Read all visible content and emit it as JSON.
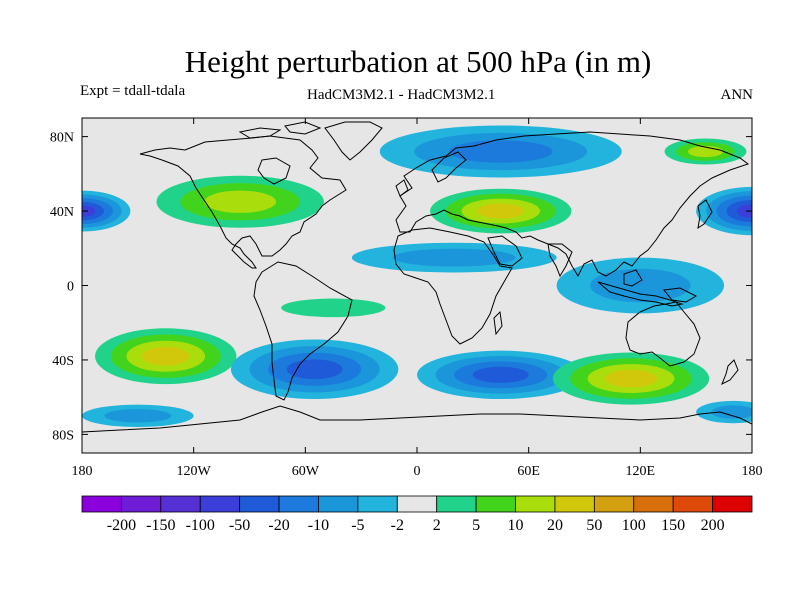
{
  "title": "Height perturbation at 500 hPa (in m)",
  "experiment_label": "Expt = tdall-tdala",
  "model_label": "HadCM3M2.1 - HadCM3M2.1",
  "season_label": "ANN",
  "map": {
    "projection": "cylindrical-equidistant",
    "lon_range": [
      -180,
      180
    ],
    "lat_range": [
      -90,
      90
    ],
    "background_color": "#e6e6e6",
    "coastline_color": "#000000",
    "lat_ticks": [
      {
        "value": 80,
        "label": "80N"
      },
      {
        "value": 40,
        "label": "40N"
      },
      {
        "value": 0,
        "label": "0"
      },
      {
        "value": -40,
        "label": "40S"
      },
      {
        "value": -80,
        "label": "80S"
      }
    ],
    "lon_ticks": [
      {
        "value": -180,
        "label": "180"
      },
      {
        "value": -120,
        "label": "120W"
      },
      {
        "value": -60,
        "label": "60W"
      },
      {
        "value": 0,
        "label": "0"
      },
      {
        "value": 60,
        "label": "60E"
      },
      {
        "value": 120,
        "label": "120E"
      },
      {
        "value": 180,
        "label": "180"
      }
    ],
    "anomalies": [
      {
        "name": "north-pacific-west-low",
        "lon": -180,
        "lat": 40,
        "rlon": 26,
        "rlat": 11,
        "level": -50
      },
      {
        "name": "north-pacific-east-low",
        "lon": 180,
        "lat": 40,
        "rlon": 30,
        "rlat": 13,
        "level": -50
      },
      {
        "name": "north-america-high",
        "lon": -95,
        "lat": 45,
        "rlon": 45,
        "rlat": 14,
        "level": 10
      },
      {
        "name": "eurasia-high",
        "lon": 45,
        "lat": 40,
        "rlon": 38,
        "rlat": 12,
        "level": 20
      },
      {
        "name": "arctic-low",
        "lon": 45,
        "lat": 72,
        "rlon": 65,
        "rlat": 14,
        "level": -10
      },
      {
        "name": "siberia-high",
        "lon": 155,
        "lat": 72,
        "rlon": 22,
        "rlat": 7,
        "level": 10
      },
      {
        "name": "subtropic-low-atlantic",
        "lon": 20,
        "lat": 15,
        "rlon": 55,
        "rlat": 8,
        "level": -5
      },
      {
        "name": "pacific-tropical-low",
        "lon": 120,
        "lat": 0,
        "rlon": 45,
        "rlat": 15,
        "level": -5
      },
      {
        "name": "south-pacific-high",
        "lon": -135,
        "lat": -38,
        "rlon": 38,
        "rlat": 15,
        "level": 20
      },
      {
        "name": "south-america-low",
        "lon": -55,
        "lat": -45,
        "rlon": 45,
        "rlat": 16,
        "level": -20
      },
      {
        "name": "south-atlantic-tropical-high",
        "lon": -45,
        "lat": -12,
        "rlon": 28,
        "rlat": 5,
        "level": 2
      },
      {
        "name": "south-indian-low",
        "lon": 45,
        "lat": -48,
        "rlon": 45,
        "rlat": 13,
        "level": -20
      },
      {
        "name": "south-west-pacific-high",
        "lon": 115,
        "lat": -50,
        "rlon": 42,
        "rlat": 14,
        "level": 20
      },
      {
        "name": "southern-ocean-low",
        "lon": -150,
        "lat": -70,
        "rlon": 30,
        "rlat": 6,
        "level": -5
      },
      {
        "name": "south-pacific-low",
        "lon": 170,
        "lat": -68,
        "rlon": 20,
        "rlat": 6,
        "level": -5
      }
    ]
  },
  "colorbar": {
    "colors": [
      "#8a00dc",
      "#6f1cd6",
      "#5530d4",
      "#3b3ed8",
      "#1f5ad8",
      "#1b7adb",
      "#1b96db",
      "#22b4dc",
      "#e6e6e6",
      "#21d38a",
      "#42d31d",
      "#a9de0c",
      "#d2c80b",
      "#d4a012",
      "#d9700b",
      "#dd4a0a",
      "#dc0000"
    ],
    "labels": [
      "-200",
      "-150",
      "-100",
      "-50",
      "-20",
      "-10",
      "-5",
      "-2",
      "2",
      "5",
      "10",
      "20",
      "50",
      "100",
      "150",
      "200"
    ],
    "levels": [
      -200,
      -150,
      -100,
      -50,
      -20,
      -10,
      -5,
      -2,
      2,
      5,
      10,
      20,
      50,
      100,
      150,
      200
    ]
  }
}
